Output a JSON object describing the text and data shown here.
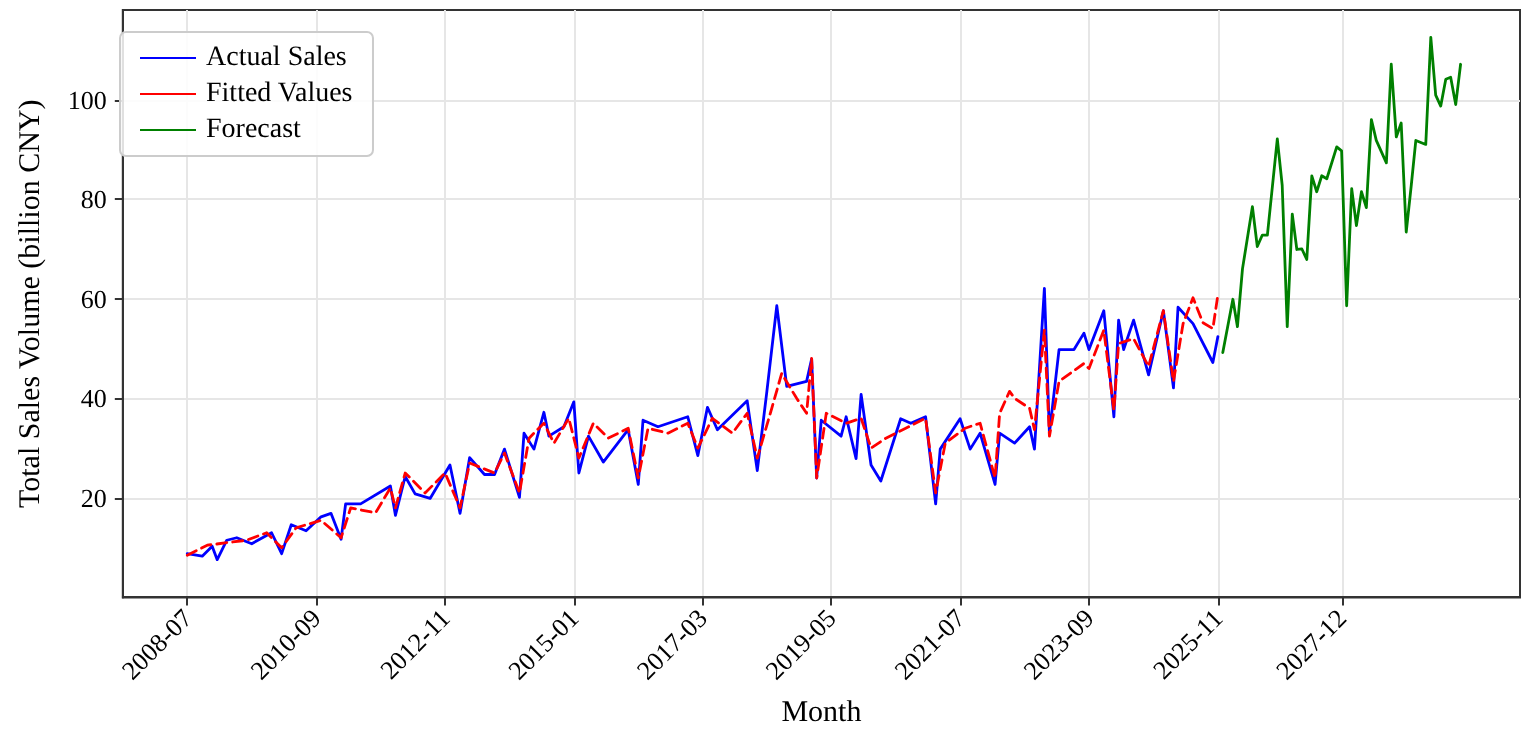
{
  "chart_data": {
    "type": "line",
    "xlabel": "Month",
    "ylabel": "Total Sales Volume (billion CNY)",
    "xlim": [
      "2007-06",
      "2030-12"
    ],
    "xticks": [
      "2008-07",
      "2010-09",
      "2012-11",
      "2015-01",
      "2017-03",
      "2019-05",
      "2021-07",
      "2023-09",
      "2025-11",
      "2027-12"
    ],
    "ylim": [
      0,
      118
    ],
    "yticks": [
      20,
      40,
      60,
      80,
      100
    ],
    "grid": true,
    "legend": "top left",
    "marker": "none",
    "series": [
      {
        "name": "Actual Sales",
        "color": "#0000ff",
        "line_style": "solid",
        "x": [
          "2008-07",
          "2008-10",
          "2008-12",
          "2009-01",
          "2009-03",
          "2009-05",
          "2009-08",
          "2009-12",
          "2010-02",
          "2010-04",
          "2010-07",
          "2010-10",
          "2010-12",
          "2011-02",
          "2011-03",
          "2011-06",
          "2011-12",
          "2012-01",
          "2012-03",
          "2012-05",
          "2012-08",
          "2012-12",
          "2013-02",
          "2013-04",
          "2013-07",
          "2013-09",
          "2013-11",
          "2014-02",
          "2014-03",
          "2014-05",
          "2014-07",
          "2014-08",
          "2014-11",
          "2015-01",
          "2015-02",
          "2015-04",
          "2015-07",
          "2015-12",
          "2016-02",
          "2016-03",
          "2016-06",
          "2016-12",
          "2017-02",
          "2017-04",
          "2017-06",
          "2017-12",
          "2018-02",
          "2018-04",
          "2018-06",
          "2018-08",
          "2018-12",
          "2019-01",
          "2019-02",
          "2019-03",
          "2019-07",
          "2019-08",
          "2019-10",
          "2019-11",
          "2020-01",
          "2020-03",
          "2020-07",
          "2020-09",
          "2020-12",
          "2021-02",
          "2021-03",
          "2021-07",
          "2021-09",
          "2021-11",
          "2022-02",
          "2022-03",
          "2022-06",
          "2022-09",
          "2022-10",
          "2022-12",
          "2023-01",
          "2023-03",
          "2023-06",
          "2023-08",
          "2023-09",
          "2023-12",
          "2024-02",
          "2024-03",
          "2024-04",
          "2024-06",
          "2024-09",
          "2024-12",
          "2025-02",
          "2025-03",
          "2025-06",
          "2025-10",
          "2025-11"
        ],
        "values": [
          8.8,
          8.3,
          10.3,
          7.6,
          11.5,
          12,
          10.8,
          13,
          8.8,
          14.6,
          13.4,
          16.2,
          16.9,
          11.7,
          18.8,
          18.8,
          22.4,
          16.5,
          24.3,
          20.8,
          19.9,
          26.6,
          16.9,
          28.1,
          24.7,
          24.7,
          29.8,
          20.1,
          33,
          29.8,
          37.2,
          32.4,
          34.3,
          39.3,
          25,
          32.4,
          27.2,
          33.7,
          22.7,
          35.6,
          34.3,
          36.3,
          28.5,
          38.2,
          33.7,
          39.5,
          25.5,
          41.4,
          58.6,
          42.4,
          43.4,
          47.9,
          24,
          35.6,
          32.4,
          36.3,
          27.9,
          40.8,
          26.6,
          23.4,
          35.9,
          35,
          36.3,
          18.8,
          29.8,
          35.9,
          29.8,
          33,
          22.7,
          33,
          31,
          34.3,
          29.8,
          62.1,
          33,
          49.8,
          49.8,
          53.1,
          49.8,
          57.6,
          36.3,
          55.7,
          49.8,
          55.7,
          44.7,
          57.6,
          42.1,
          58.3,
          55,
          47.2,
          52.4
        ]
      },
      {
        "name": "Fitted Values",
        "color": "#ff0000",
        "line_style": "dashed",
        "x": [
          "2008-07",
          "2008-11",
          "2009-03",
          "2009-07",
          "2009-11",
          "2010-02",
          "2010-05",
          "2010-10",
          "2011-02",
          "2011-04",
          "2011-09",
          "2011-12",
          "2012-01",
          "2012-03",
          "2012-07",
          "2012-11",
          "2013-02",
          "2013-04",
          "2013-09",
          "2013-11",
          "2014-02",
          "2014-04",
          "2014-07",
          "2014-09",
          "2014-12",
          "2015-02",
          "2015-05",
          "2015-08",
          "2015-12",
          "2016-02",
          "2016-04",
          "2016-08",
          "2016-12",
          "2017-02",
          "2017-05",
          "2017-09",
          "2017-12",
          "2018-02",
          "2018-05",
          "2018-07",
          "2018-10",
          "2018-12",
          "2019-01",
          "2019-02",
          "2019-04",
          "2019-08",
          "2019-11",
          "2020-01",
          "2020-04",
          "2020-08",
          "2020-12",
          "2021-02",
          "2021-04",
          "2021-08",
          "2021-11",
          "2022-02",
          "2022-03",
          "2022-05",
          "2022-06",
          "2022-09",
          "2022-10",
          "2022-12",
          "2023-01",
          "2023-03",
          "2023-08",
          "2023-09",
          "2023-12",
          "2024-02",
          "2024-03",
          "2024-06",
          "2024-09",
          "2024-12",
          "2025-02",
          "2025-04",
          "2025-06",
          "2025-08",
          "2025-10",
          "2025-11"
        ],
        "values": [
          8.5,
          10.5,
          11,
          11.5,
          13,
          10,
          14,
          15.5,
          12,
          18,
          17,
          22,
          18,
          25,
          21,
          25,
          18,
          27,
          25,
          29,
          21,
          32,
          35,
          31,
          36,
          28,
          35,
          32,
          34,
          24,
          34,
          33,
          35,
          30,
          36,
          33,
          37,
          28,
          38,
          45,
          40,
          37,
          48,
          24,
          37,
          35,
          36,
          30,
          32,
          34,
          36,
          21,
          31,
          34,
          35,
          24,
          37,
          41.4,
          40,
          38,
          33.7,
          53.7,
          32.4,
          43.4,
          47,
          46,
          53.7,
          37.6,
          51,
          52,
          46.4,
          57.6,
          43.4,
          55,
          60.2,
          55.2,
          54,
          60.8
        ]
      },
      {
        "name": "Forecast",
        "color": "#008000",
        "line_style": "solid",
        "x": [
          "2025-12",
          "2026-02",
          "2026-03",
          "2026-04",
          "2026-06",
          "2026-07",
          "2026-08",
          "2026-09",
          "2026-11",
          "2026-12",
          "2027-01",
          "2027-02",
          "2027-03",
          "2027-04",
          "2027-05",
          "2027-06",
          "2027-07",
          "2027-08",
          "2027-09",
          "2027-11",
          "2027-12",
          "2028-01",
          "2028-02",
          "2028-03",
          "2028-04",
          "2028-05",
          "2028-06",
          "2028-07",
          "2028-09",
          "2028-10",
          "2028-11",
          "2028-12",
          "2029-01",
          "2029-02",
          "2029-03",
          "2029-05",
          "2029-06",
          "2029-07",
          "2029-08",
          "2029-09",
          "2029-10",
          "2029-11",
          "2029-12"
        ],
        "values": [
          49.2,
          59.9,
          54.4,
          66,
          78.5,
          70.5,
          72.8,
          72.8,
          92.1,
          82.8,
          54.4,
          77,
          69.9,
          70,
          67.9,
          84.7,
          81.5,
          84.7,
          84.1,
          90.5,
          89.7,
          58.6,
          82.1,
          74.7,
          81.5,
          78.3,
          96,
          91.8,
          87.3,
          107.1,
          92.5,
          95.3,
          73.4,
          82.8,
          91.8,
          91,
          112.5,
          100.9,
          98.7,
          104.1,
          104.5,
          99,
          107.1
        ]
      }
    ]
  }
}
